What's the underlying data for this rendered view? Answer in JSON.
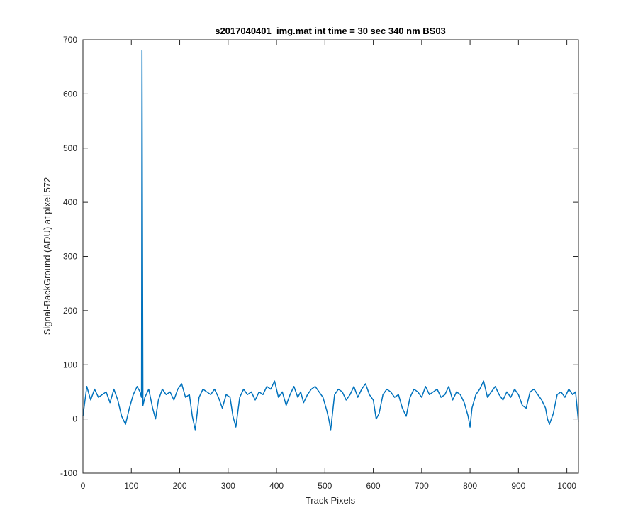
{
  "chart_data": {
    "type": "line",
    "title": "s2017040401_img.mat int time = 30 sec  340 nm BS03",
    "xlabel": "Track Pixels",
    "ylabel": "Signal-BackGround (ADU) at pixel 572",
    "xlim": [
      0,
      1024
    ],
    "ylim": [
      -100,
      700
    ],
    "xticks": [
      0,
      100,
      200,
      300,
      400,
      500,
      600,
      700,
      800,
      900,
      1000
    ],
    "yticks": [
      -100,
      0,
      100,
      200,
      300,
      400,
      500,
      600,
      700
    ],
    "grid": false,
    "line_color": "#0072BD",
    "series": [
      {
        "x": [
          0,
          8,
          16,
          24,
          32,
          40,
          48,
          56,
          64,
          72,
          80,
          88,
          96,
          104,
          112,
          118,
          121,
          122,
          124,
          128,
          136,
          144,
          150,
          156,
          164,
          172,
          180,
          188,
          196,
          204,
          212,
          220,
          226,
          232,
          240,
          248,
          256,
          264,
          272,
          280,
          288,
          296,
          304,
          310,
          316,
          324,
          332,
          340,
          348,
          356,
          364,
          372,
          380,
          388,
          396,
          404,
          412,
          420,
          428,
          436,
          444,
          450,
          456,
          464,
          472,
          480,
          488,
          496,
          504,
          508,
          512,
          520,
          528,
          536,
          544,
          552,
          560,
          568,
          576,
          584,
          592,
          600,
          606,
          612,
          620,
          628,
          636,
          644,
          652,
          660,
          668,
          676,
          684,
          692,
          700,
          708,
          716,
          724,
          732,
          740,
          748,
          756,
          764,
          772,
          780,
          788,
          796,
          800,
          804,
          812,
          820,
          828,
          836,
          844,
          852,
          860,
          868,
          876,
          884,
          892,
          900,
          908,
          916,
          924,
          932,
          940,
          948,
          956,
          960,
          964,
          972,
          980,
          988,
          996,
          1004,
          1012,
          1018,
          1024
        ],
        "y": [
          5,
          60,
          35,
          55,
          40,
          45,
          50,
          30,
          55,
          35,
          5,
          -10,
          20,
          45,
          60,
          50,
          40,
          680,
          25,
          40,
          55,
          20,
          0,
          35,
          55,
          45,
          50,
          35,
          55,
          65,
          40,
          45,
          5,
          -20,
          40,
          55,
          50,
          45,
          55,
          40,
          20,
          45,
          40,
          5,
          -15,
          40,
          55,
          45,
          50,
          35,
          50,
          45,
          60,
          55,
          70,
          40,
          50,
          25,
          45,
          60,
          40,
          50,
          30,
          45,
          55,
          60,
          50,
          40,
          15,
          0,
          -20,
          45,
          55,
          50,
          35,
          45,
          60,
          40,
          55,
          65,
          45,
          35,
          0,
          10,
          45,
          55,
          50,
          40,
          45,
          20,
          5,
          40,
          55,
          50,
          40,
          60,
          45,
          50,
          55,
          40,
          45,
          60,
          35,
          50,
          45,
          30,
          5,
          -15,
          20,
          45,
          55,
          70,
          40,
          50,
          60,
          45,
          35,
          50,
          40,
          55,
          45,
          25,
          20,
          50,
          55,
          45,
          35,
          20,
          0,
          -10,
          10,
          45,
          50,
          40,
          55,
          45,
          50,
          -5
        ]
      }
    ]
  }
}
